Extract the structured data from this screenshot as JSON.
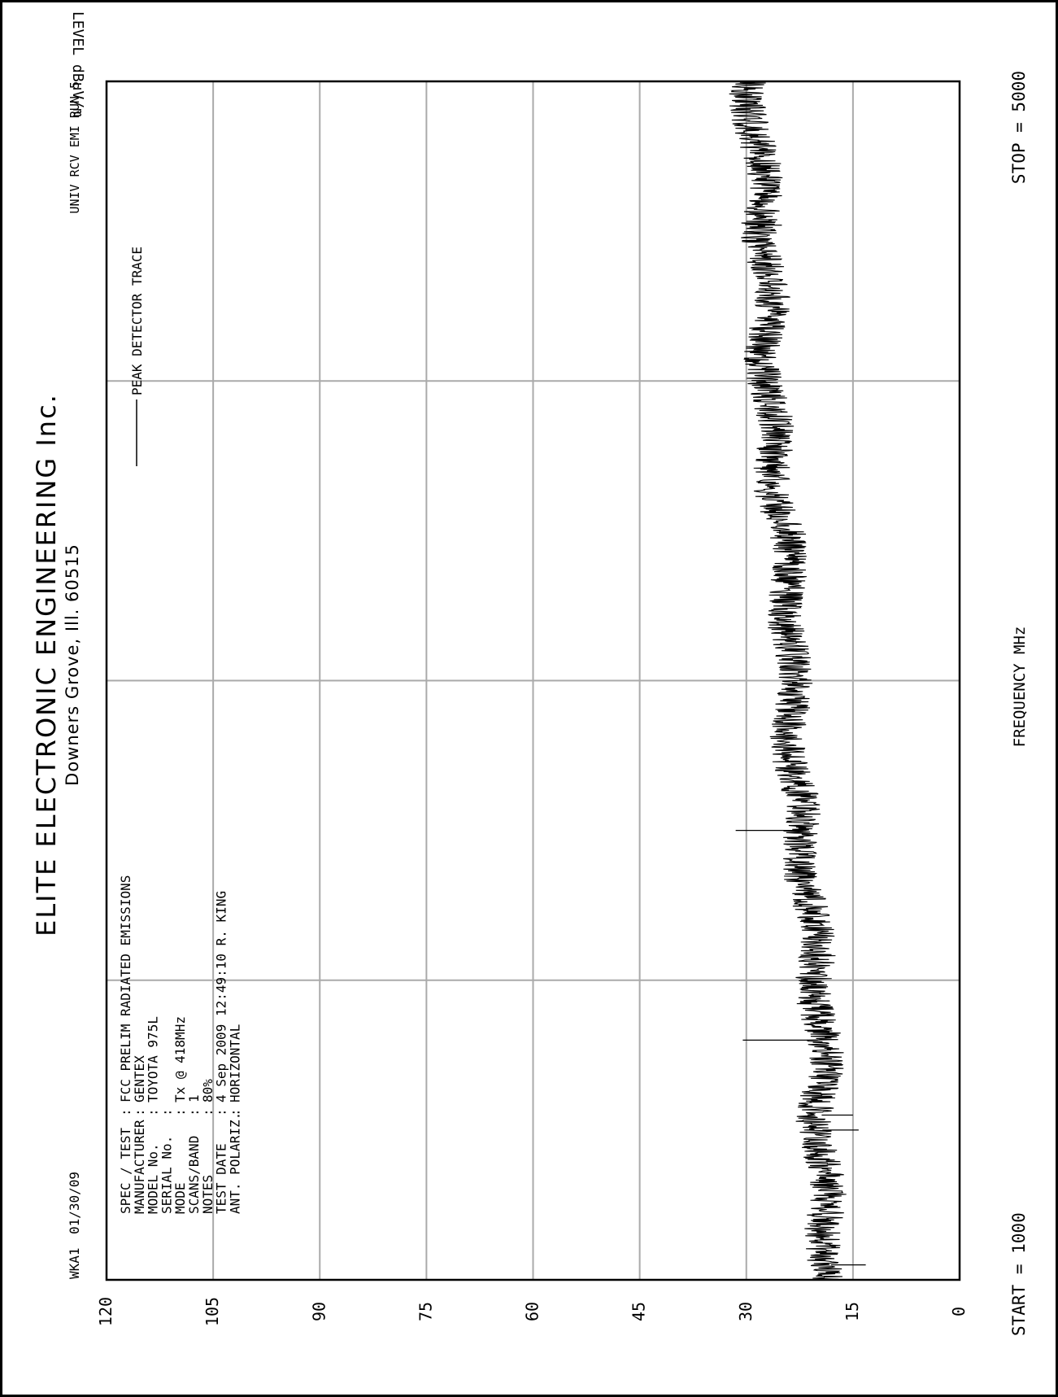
{
  "header": {
    "title": "ELITE ELECTRONIC ENGINEERING Inc.",
    "subtitle": "Downers Grove, Ill. 60515",
    "top_left_id": "WKA1",
    "top_left_date": "01/30/09",
    "top_right": "UNIV RCV EMI  RUN 5"
  },
  "info_rows": [
    {
      "label": "SPEC / TEST",
      "value": "FCC PRELIM RADIATED EMISSIONS"
    },
    {
      "label": "MANUFACTURER",
      "value": "GENTEX"
    },
    {
      "label": "MODEL No.",
      "value": "TOYOTA 975L"
    },
    {
      "label": "SERIAL No.",
      "value": ""
    },
    {
      "label": "MODE",
      "value": "Tx @ 418MHz"
    },
    {
      "label": "SCANS/BAND",
      "value": "1"
    },
    {
      "label": "NOTES",
      "value": "80%"
    },
    {
      "label": "TEST DATE",
      "value": "4 Sep 2009 12:49:10  R. KING"
    },
    {
      "label": "ANT. POLARIZ.",
      "value": "HORIZONTAL"
    }
  ],
  "chart_data": {
    "type": "line",
    "xlabel": "FREQUENCY  MHz",
    "ylabel": "LEVEL dBuV/m",
    "xlim": [
      1000,
      5000
    ],
    "ylim": [
      0,
      120
    ],
    "y_ticks": [
      "120",
      "105",
      "90",
      "75",
      "60",
      "45",
      "30",
      "15",
      "0"
    ],
    "x_start_label": "START = 1000",
    "x_stop_label": "STOP = 5000",
    "grid": true,
    "legend": "PEAK  DETECTOR TRACE",
    "series": [
      {
        "name": "PEAK  DETECTOR TRACE",
        "note": "noisy trace, approx. band ±2.5 dBuV around baseline",
        "x": [
          1000,
          1250,
          1500,
          1750,
          2000,
          2250,
          2500,
          2750,
          3000,
          3250,
          3500,
          3750,
          4000,
          4250,
          4500,
          4750,
          5000
        ],
        "y": [
          18,
          18.5,
          19.3,
          19.8,
          20.5,
          21.4,
          22,
          23,
          24,
          24.6,
          25,
          25.8,
          26.5,
          27.2,
          28,
          28.8,
          29
        ]
      }
    ],
    "spikes": [
      {
        "x": 1050,
        "y": 13.2
      },
      {
        "x": 1500,
        "y": 14.2
      },
      {
        "x": 1550,
        "y": 15
      },
      {
        "x": 1800,
        "y": 30.5
      },
      {
        "x": 2500,
        "y": 31.5
      },
      {
        "x": 4520,
        "y": 25
      }
    ]
  }
}
